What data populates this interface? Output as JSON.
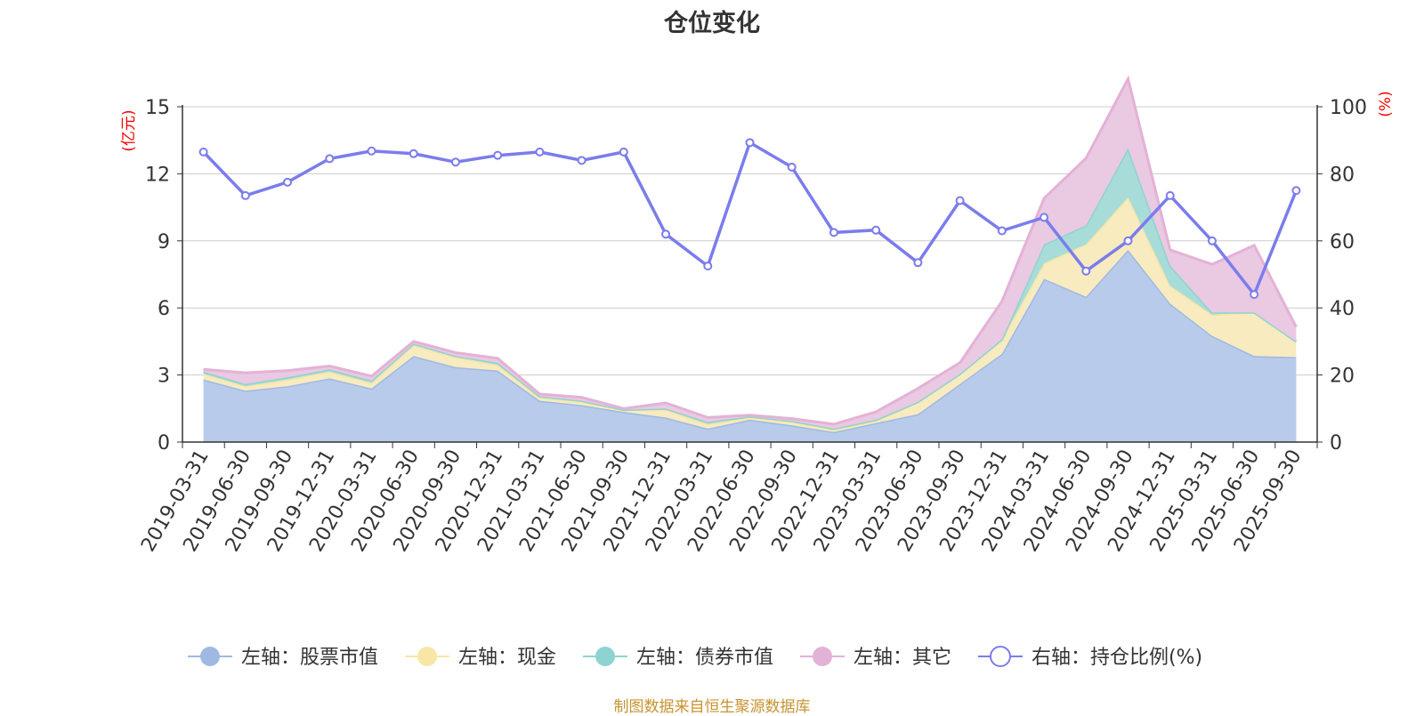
{
  "chart_data": {
    "type": "area",
    "title": "仓位变化",
    "source": "制图数据来自恒生聚源数据库",
    "left_axis_unit": "(亿元)",
    "right_axis_unit": "(%)",
    "left_ylim": [
      0,
      15
    ],
    "left_ticks": [
      "0",
      "3",
      "6",
      "9",
      "12",
      "15"
    ],
    "right_ylim": [
      0,
      100
    ],
    "right_ticks": [
      "0",
      "20",
      "40",
      "60",
      "80",
      "100"
    ],
    "grid": true,
    "legend_position": "bottom",
    "categories": [
      "2019-03-31",
      "2019-06-30",
      "2019-09-30",
      "2019-12-31",
      "2020-03-31",
      "2020-06-30",
      "2020-09-30",
      "2020-12-31",
      "2021-03-31",
      "2021-06-30",
      "2021-09-30",
      "2021-12-31",
      "2022-03-31",
      "2022-06-30",
      "2022-09-30",
      "2022-12-31",
      "2023-03-31",
      "2023-06-30",
      "2023-09-30",
      "2023-12-31",
      "2024-03-31",
      "2024-06-30",
      "2024-09-30",
      "2024-12-31",
      "2025-03-31",
      "2025-06-30",
      "2025-09-30"
    ],
    "series": [
      {
        "name": "左轴：股票市值",
        "axis": "left",
        "kind": "area",
        "color": "#9fb9e3",
        "fill": "#b8cbea",
        "values": [
          2.8,
          2.3,
          2.5,
          2.85,
          2.4,
          3.85,
          3.35,
          3.2,
          1.85,
          1.65,
          1.35,
          1.1,
          0.6,
          1.0,
          0.75,
          0.45,
          0.85,
          1.25,
          2.6,
          3.95,
          7.3,
          6.5,
          8.6,
          6.2,
          4.75,
          3.85,
          3.8
        ]
      },
      {
        "name": "左轴：现金",
        "axis": "left",
        "kind": "area",
        "color": "#f7e6a6",
        "fill": "#f7ebbf",
        "values": [
          0.25,
          0.2,
          0.3,
          0.3,
          0.25,
          0.5,
          0.45,
          0.25,
          0.15,
          0.15,
          0.1,
          0.35,
          0.2,
          0.1,
          0.15,
          0.1,
          0.1,
          0.55,
          0.45,
          0.65,
          0.7,
          2.35,
          2.35,
          0.8,
          0.95,
          1.95,
          0.7
        ]
      },
      {
        "name": "左轴：债券市值",
        "axis": "left",
        "kind": "area",
        "color": "#8fd3d1",
        "fill": "#a7dcd9",
        "values": [
          0.1,
          0.1,
          0.1,
          0.1,
          0.1,
          0.05,
          0.05,
          0.1,
          0.05,
          0.05,
          0.0,
          0.05,
          0.1,
          0.05,
          0.05,
          0.05,
          0.05,
          0.0,
          0.0,
          0.0,
          0.85,
          0.85,
          2.2,
          0.9,
          0.1,
          0.0,
          0.0
        ]
      },
      {
        "name": "左轴：其它",
        "axis": "left",
        "kind": "area",
        "color": "#e3b2d6",
        "fill": "#eac9e2",
        "values": [
          0.1,
          0.5,
          0.3,
          0.15,
          0.2,
          0.1,
          0.15,
          0.2,
          0.1,
          0.15,
          0.05,
          0.25,
          0.2,
          0.05,
          0.1,
          0.2,
          0.35,
          0.6,
          0.5,
          1.7,
          2.05,
          3.0,
          3.1,
          0.7,
          2.15,
          3.0,
          0.65
        ]
      },
      {
        "name": "右轴：持仓比例(%)",
        "axis": "right",
        "kind": "line",
        "color": "#7b7cec",
        "values": [
          86.5,
          73.5,
          77.5,
          84.5,
          86.8,
          86.0,
          83.5,
          85.5,
          86.5,
          84.0,
          86.5,
          62.0,
          52.5,
          89.3,
          82.0,
          62.5,
          63.2,
          53.5,
          72.0,
          63.0,
          67.0,
          51.0,
          60.0,
          73.5,
          60.0,
          44.0,
          75.0
        ]
      }
    ]
  }
}
